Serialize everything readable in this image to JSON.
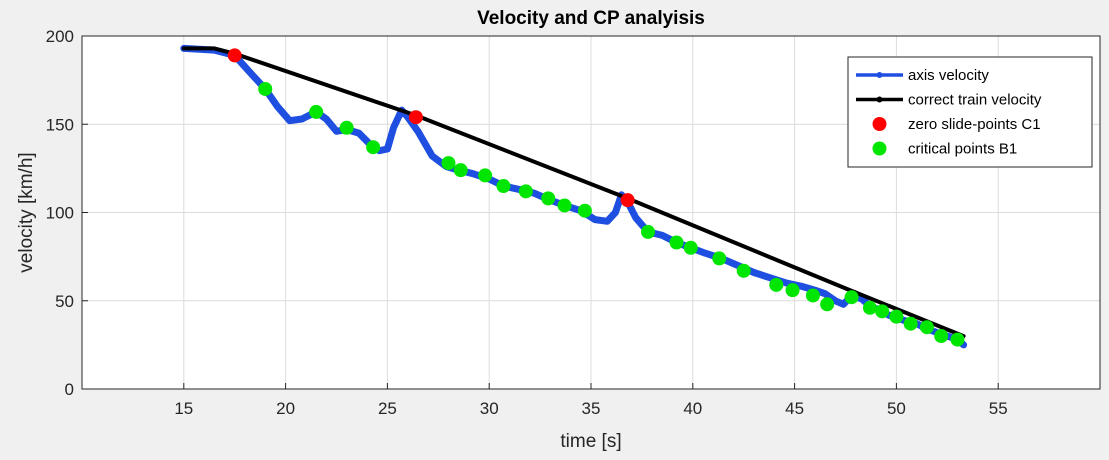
{
  "chart_data": {
    "type": "line",
    "title": "Velocity and CP analyisis",
    "xlabel": "time [s]",
    "ylabel": "velocity [km/h]",
    "xlim": [
      10,
      60
    ],
    "ylim": [
      0,
      200
    ],
    "xticks": [
      15,
      20,
      25,
      30,
      35,
      40,
      45,
      50,
      55
    ],
    "yticks": [
      0,
      50,
      100,
      150,
      200
    ],
    "grid": true,
    "legend_position": "top-right",
    "series": [
      {
        "name": "axis velocity",
        "color": "#1f4fe0",
        "style": "line",
        "x": [
          15,
          16.5,
          17.5,
          18.2,
          19.0,
          19.6,
          20.2,
          20.8,
          21.5,
          22.0,
          22.5,
          23.0,
          23.6,
          24.2,
          24.6,
          25.0,
          25.3,
          25.7,
          26.0,
          26.5,
          27.2,
          27.9,
          28.5,
          29.2,
          30.0,
          30.7,
          31.5,
          32.2,
          33.0,
          33.7,
          34.5,
          35.2,
          35.8,
          36.2,
          36.5,
          36.8,
          37.2,
          37.8,
          38.5,
          39.2,
          39.9,
          40.6,
          41.4,
          42.2,
          43.0,
          43.8,
          44.6,
          45.4,
          46.0,
          46.5,
          47.0,
          47.4,
          47.8,
          48.3,
          48.8,
          49.2,
          49.6,
          50.1,
          50.6,
          51.0,
          51.5,
          52.0,
          52.5,
          53.0,
          53.3
        ],
        "y": [
          193,
          192,
          189,
          180,
          170,
          160,
          152,
          153,
          157,
          153,
          146,
          147,
          145,
          138,
          135,
          136,
          148,
          158,
          154,
          146,
          132,
          126,
          124,
          122,
          119,
          115,
          113,
          111,
          107,
          104,
          101,
          96,
          95,
          100,
          110,
          106,
          97,
          89,
          87,
          83,
          80,
          77,
          74,
          70,
          66,
          63,
          60,
          58,
          56,
          54,
          50,
          48,
          53,
          51,
          46,
          45,
          42,
          40,
          38,
          37,
          34,
          32,
          30,
          28,
          25
        ]
      },
      {
        "name": "correct train velocity",
        "color": "#000000",
        "style": "line",
        "x": [
          15,
          16.5,
          17.5,
          26.4,
          36.8,
          47.5,
          53.3
        ],
        "y": [
          193,
          193,
          190,
          155,
          108,
          57,
          30
        ]
      },
      {
        "name": "zero slide-points C1",
        "color": "#ff0000",
        "style": "markers",
        "x": [
          17.5,
          26.4,
          36.8
        ],
        "y": [
          189,
          154,
          107
        ]
      },
      {
        "name": "critical points B1",
        "color": "#00e600",
        "style": "markers",
        "x": [
          19.0,
          21.5,
          23.0,
          24.3,
          28.0,
          28.6,
          29.8,
          30.7,
          31.8,
          32.9,
          33.7,
          34.7,
          37.8,
          39.2,
          39.9,
          41.3,
          42.5,
          44.1,
          44.9,
          45.9,
          46.6,
          47.8,
          48.7,
          49.3,
          50.0,
          50.7,
          51.5,
          52.2,
          53.0
        ],
        "y": [
          170,
          157,
          148,
          137,
          128,
          124,
          121,
          115,
          112,
          108,
          104,
          101,
          89,
          83,
          80,
          74,
          67,
          59,
          56,
          53,
          48,
          52,
          46,
          44,
          41,
          37,
          35,
          30,
          28
        ]
      }
    ]
  }
}
